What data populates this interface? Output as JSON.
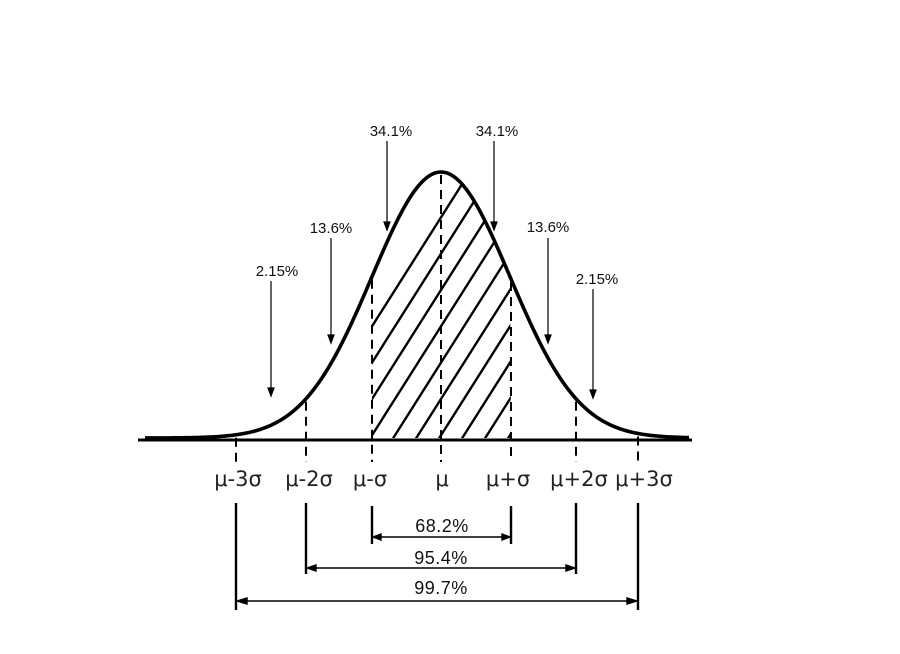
{
  "diagram": {
    "top_percent_labels": {
      "left_3sigma": "2.15%",
      "left_2sigma": "13.6%",
      "left_1sigma": "34.1%",
      "right_1sigma": "34.1%",
      "right_2sigma": "13.6%",
      "right_3sigma": "2.15%"
    },
    "axis_labels": {
      "minus_3sigma": "μ-3σ",
      "minus_2sigma": "μ-2σ",
      "minus_1sigma": "μ-σ",
      "mean": "μ",
      "plus_1sigma": "μ+σ",
      "plus_2sigma": "μ+2σ",
      "plus_3sigma": "μ+3σ"
    },
    "range_labels": {
      "one_sigma": "68.2%",
      "two_sigma": "95.4%",
      "three_sigma": "99.7%"
    },
    "colors": {
      "ink": "#000000",
      "background": "#ffffff"
    }
  }
}
